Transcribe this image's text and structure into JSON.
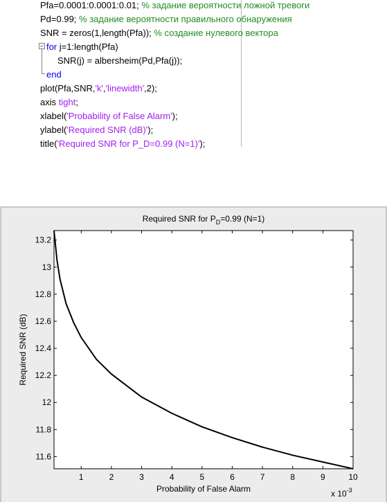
{
  "code": {
    "lines": [
      [
        {
          "text": "Pfa=0.0001:0.0001:0.01; ",
          "color": "#000000"
        },
        {
          "text": "% задание вероятности ложной тревоги",
          "color": "#228b22"
        }
      ],
      [
        {
          "text": "Pd=0.99; ",
          "color": "#000000"
        },
        {
          "text": "% задание вероятности правильного обнаружения",
          "color": "#228b22"
        }
      ],
      [
        {
          "text": "SNR = zeros(1,length(Pfa)); ",
          "color": "#000000"
        },
        {
          "text": "% создание нулевого вектора",
          "color": "#228b22"
        }
      ],
      [
        {
          "text": "for",
          "color": "#0000ff"
        },
        {
          "text": " j=1:length(Pfa)",
          "color": "#000000"
        }
      ],
      [
        {
          "text": "SNR(j) = albersheim(Pd,Pfa(j));",
          "color": "#000000"
        }
      ],
      [
        {
          "text": "end",
          "color": "#0000ff"
        }
      ],
      [
        {
          "text": "plot(Pfa,SNR,",
          "color": "#000000"
        },
        {
          "text": "'k'",
          "color": "#a020f0"
        },
        {
          "text": ",",
          "color": "#000000"
        },
        {
          "text": "'linewidth'",
          "color": "#a020f0"
        },
        {
          "text": ",2);",
          "color": "#000000"
        }
      ],
      [
        {
          "text": "axis ",
          "color": "#000000"
        },
        {
          "text": "tight",
          "color": "#a020f0"
        },
        {
          "text": ";",
          "color": "#000000"
        }
      ],
      [
        {
          "text": "xlabel(",
          "color": "#000000"
        },
        {
          "text": "'Probability of False Alarm'",
          "color": "#a020f0"
        },
        {
          "text": ");",
          "color": "#000000"
        }
      ],
      [
        {
          "text": "ylabel(",
          "color": "#000000"
        },
        {
          "text": "'Required SNR (dB)'",
          "color": "#a020f0"
        },
        {
          "text": ");",
          "color": "#000000"
        }
      ],
      [
        {
          "text": "title(",
          "color": "#000000"
        },
        {
          "text": "'Required SNR for P_D=0.99 (N=1)'",
          "color": "#a020f0"
        },
        {
          "text": ");",
          "color": "#000000"
        }
      ]
    ]
  },
  "chart_data": {
    "type": "line",
    "title": [
      "Required SNR for P",
      "D",
      "=0.99 (N=1)"
    ],
    "x_label": "Probability of False Alarm",
    "y_label": "Required SNR (dB)",
    "x_multiplier": [
      "x 10",
      "-3"
    ],
    "x": [
      0.0001,
      0.0002,
      0.0003,
      0.0005,
      0.00075,
      0.001,
      0.0015,
      0.002,
      0.003,
      0.004,
      0.005,
      0.006,
      0.007,
      0.008,
      0.009,
      0.01
    ],
    "series": [
      {
        "color": "#000000",
        "values": [
          13.27,
          13.05,
          12.91,
          12.73,
          12.59,
          12.48,
          12.32,
          12.21,
          12.04,
          11.92,
          11.82,
          11.74,
          11.67,
          11.61,
          11.56,
          11.51
        ]
      }
    ],
    "xlim": [
      0.0001,
      0.01
    ],
    "ylim": [
      11.51,
      13.27
    ],
    "xticks": [
      {
        "value": 0.001,
        "label": "1"
      },
      {
        "value": 0.002,
        "label": "2"
      },
      {
        "value": 0.003,
        "label": "3"
      },
      {
        "value": 0.004,
        "label": "4"
      },
      {
        "value": 0.005,
        "label": "5"
      },
      {
        "value": 0.006,
        "label": "6"
      },
      {
        "value": 0.007,
        "label": "7"
      },
      {
        "value": 0.008,
        "label": "8"
      },
      {
        "value": 0.009,
        "label": "9"
      },
      {
        "value": 0.01,
        "label": "10"
      }
    ],
    "yticks": [
      11.6,
      11.8,
      12,
      12.2,
      12.4,
      12.6,
      12.8,
      13,
      13.2
    ],
    "grid": false
  }
}
